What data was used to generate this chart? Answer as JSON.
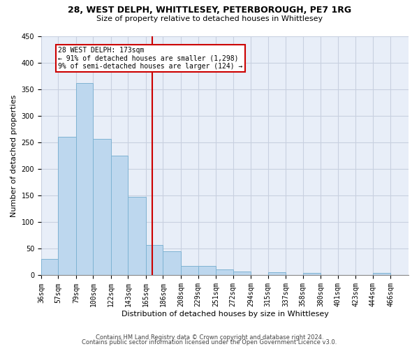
{
  "title1": "28, WEST DELPH, WHITTLESEY, PETERBOROUGH, PE7 1RG",
  "title2": "Size of property relative to detached houses in Whittlesey",
  "xlabel": "Distribution of detached houses by size in Whittlesey",
  "ylabel": "Number of detached properties",
  "footer1": "Contains HM Land Registry data © Crown copyright and database right 2024.",
  "footer2": "Contains public sector information licensed under the Open Government Licence v3.0.",
  "bin_labels": [
    "36sqm",
    "57sqm",
    "79sqm",
    "100sqm",
    "122sqm",
    "143sqm",
    "165sqm",
    "186sqm",
    "208sqm",
    "229sqm",
    "251sqm",
    "272sqm",
    "294sqm",
    "315sqm",
    "337sqm",
    "358sqm",
    "380sqm",
    "401sqm",
    "423sqm",
    "444sqm",
    "466sqm"
  ],
  "bar_values": [
    31,
    260,
    362,
    256,
    225,
    148,
    57,
    45,
    18,
    18,
    11,
    7,
    0,
    6,
    0,
    4,
    0,
    0,
    0,
    4,
    0
  ],
  "bar_color": "#bdd7ee",
  "bar_edge_color": "#7fb3d3",
  "bin_edges": [
    36,
    57,
    79,
    100,
    122,
    143,
    165,
    186,
    208,
    229,
    251,
    272,
    294,
    315,
    337,
    358,
    380,
    401,
    423,
    444,
    466
  ],
  "property_size": 173,
  "annotation_text_line1": "28 WEST DELPH: 173sqm",
  "annotation_text_line2": "← 91% of detached houses are smaller (1,298)",
  "annotation_text_line3": "9% of semi-detached houses are larger (124) →",
  "vline_color": "#cc0000",
  "annotation_box_color": "#cc0000",
  "ylim": [
    0,
    450
  ],
  "yticks": [
    0,
    50,
    100,
    150,
    200,
    250,
    300,
    350,
    400,
    450
  ],
  "background_color": "#e8eef8",
  "grid_color": "#c8d0e0",
  "title1_fontsize": 9,
  "title2_fontsize": 8,
  "ylabel_fontsize": 8,
  "xlabel_fontsize": 8,
  "tick_fontsize": 7,
  "footer_fontsize": 6,
  "ann_fontsize": 7
}
